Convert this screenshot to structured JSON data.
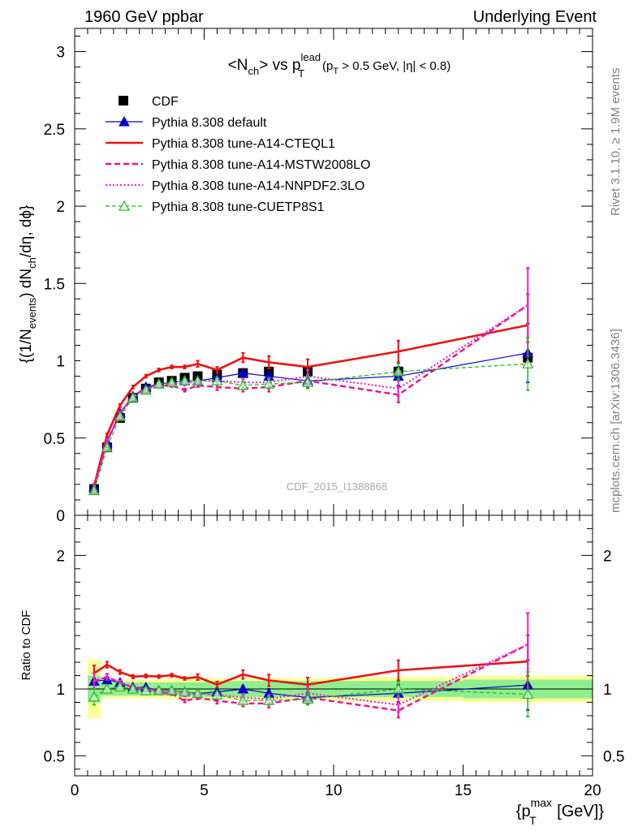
{
  "header": {
    "left": "1960 GeV ppbar",
    "right": "Underlying Event"
  },
  "side": {
    "rivet": "Rivet 3.1.10, ≥ 1.9M events",
    "mcplots": "mcplots.cern.ch [arXiv:1306.3436]"
  },
  "watermark": "CDF_2015_I1388868",
  "plot_title": {
    "main": "<N",
    "main_sub": "ch",
    "mid": "> vs p",
    "mid_sup": "lead",
    "mid_sub": "T",
    "cut_open": "(p",
    "cut_sub": "T",
    "cut_rest": " > 0.5 GeV, |η| < 0.8)"
  },
  "axes": {
    "y_main": "{(1/N",
    "y_main_sub": "events",
    "y_main_mid": ") dN",
    "y_main_sub2": "ch",
    "y_main_end": "/dη, dϕ}",
    "y_ratio": "Ratio to CDF",
    "x_label": "{p",
    "x_label_sup": "max",
    "x_label_sub": "T",
    "x_label_end": " [GeV]}"
  },
  "chart_data": {
    "type": "line",
    "xlim": [
      0,
      20
    ],
    "ylim_main": [
      0,
      3.15
    ],
    "ylim_ratio": [
      0.35,
      2.3
    ],
    "x_ticks": [
      "0",
      "5",
      "10",
      "15",
      "20"
    ],
    "y_ticks_main": [
      "0",
      "0.5",
      "1",
      "1.5",
      "2",
      "2.5",
      "3"
    ],
    "y_ticks_ratio": [
      "0.5",
      "1",
      "2"
    ],
    "x": [
      0.75,
      1.25,
      1.75,
      2.25,
      2.75,
      3.25,
      3.75,
      4.25,
      4.75,
      5.5,
      6.5,
      7.5,
      9.0,
      12.5,
      17.5
    ],
    "legend_position": "top-left",
    "series": [
      {
        "name": "CDF",
        "style": "data",
        "color": "#000000",
        "values": [
          0.17,
          0.44,
          0.63,
          0.76,
          0.82,
          0.86,
          0.87,
          0.89,
          0.9,
          0.91,
          0.92,
          0.93,
          0.93,
          0.93,
          1.02
        ],
        "band_inner": [
          0.1,
          0.05,
          0.05,
          0.05,
          0.05,
          0.05,
          0.05,
          0.05,
          0.05,
          0.06,
          0.06,
          0.06,
          0.06,
          0.06,
          0.07
        ],
        "band_outer": [
          0.22,
          0.07,
          0.07,
          0.07,
          0.07,
          0.07,
          0.08,
          0.08,
          0.08,
          0.08,
          0.08,
          0.08,
          0.08,
          0.09,
          0.1
        ]
      },
      {
        "name": "Pythia 8.308 default",
        "style": "solid-thin",
        "marker": "triangle-filled",
        "color": "#0000cc",
        "values": [
          0.18,
          0.47,
          0.66,
          0.77,
          0.83,
          0.85,
          0.86,
          0.87,
          0.87,
          0.89,
          0.92,
          0.9,
          0.87,
          0.9,
          1.05
        ],
        "errors": [
          0.01,
          0.01,
          0.01,
          0.01,
          0.01,
          0.01,
          0.01,
          0.01,
          0.01,
          0.01,
          0.02,
          0.03,
          0.04,
          0.06,
          0.19
        ]
      },
      {
        "name": "Pythia 8.308 tune-A14-CTEQL1",
        "style": "solid-thick",
        "color": "#ee1111",
        "values": [
          0.19,
          0.52,
          0.71,
          0.83,
          0.9,
          0.94,
          0.96,
          0.96,
          0.98,
          0.94,
          1.02,
          0.99,
          0.96,
          1.06,
          1.23
        ],
        "errors": [
          0.01,
          0.01,
          0.01,
          0.01,
          0.01,
          0.01,
          0.01,
          0.01,
          0.02,
          0.02,
          0.03,
          0.04,
          0.05,
          0.07,
          0.2
        ]
      },
      {
        "name": "Pythia 8.308 tune-A14-MSTW2008LO",
        "style": "dashed",
        "color": "#ee1188",
        "values": [
          0.18,
          0.48,
          0.66,
          0.77,
          0.82,
          0.84,
          0.84,
          0.81,
          0.84,
          0.83,
          0.82,
          0.83,
          0.87,
          0.78,
          1.36
        ],
        "errors": [
          0.01,
          0.01,
          0.01,
          0.01,
          0.01,
          0.01,
          0.01,
          0.01,
          0.01,
          0.02,
          0.02,
          0.03,
          0.04,
          0.05,
          0.24
        ]
      },
      {
        "name": "Pythia 8.308 tune-A14-NNPDF2.3LO",
        "style": "dotted",
        "color": "#ee22dd",
        "values": [
          0.18,
          0.48,
          0.66,
          0.77,
          0.82,
          0.85,
          0.86,
          0.85,
          0.87,
          0.87,
          0.86,
          0.86,
          0.9,
          0.82,
          1.36
        ],
        "errors": [
          0.01,
          0.01,
          0.01,
          0.01,
          0.01,
          0.01,
          0.01,
          0.01,
          0.01,
          0.02,
          0.02,
          0.03,
          0.04,
          0.05,
          0.24
        ]
      },
      {
        "name": "Pythia 8.308 tune-CUETP8S1",
        "style": "dashed-thin",
        "marker": "triangle-open",
        "color": "#22bb22",
        "values": [
          0.16,
          0.44,
          0.64,
          0.76,
          0.81,
          0.85,
          0.86,
          0.87,
          0.87,
          0.87,
          0.84,
          0.85,
          0.86,
          0.93,
          0.98
        ],
        "errors": [
          0.01,
          0.01,
          0.01,
          0.01,
          0.01,
          0.01,
          0.01,
          0.01,
          0.01,
          0.02,
          0.02,
          0.03,
          0.04,
          0.05,
          0.17
        ]
      }
    ]
  }
}
